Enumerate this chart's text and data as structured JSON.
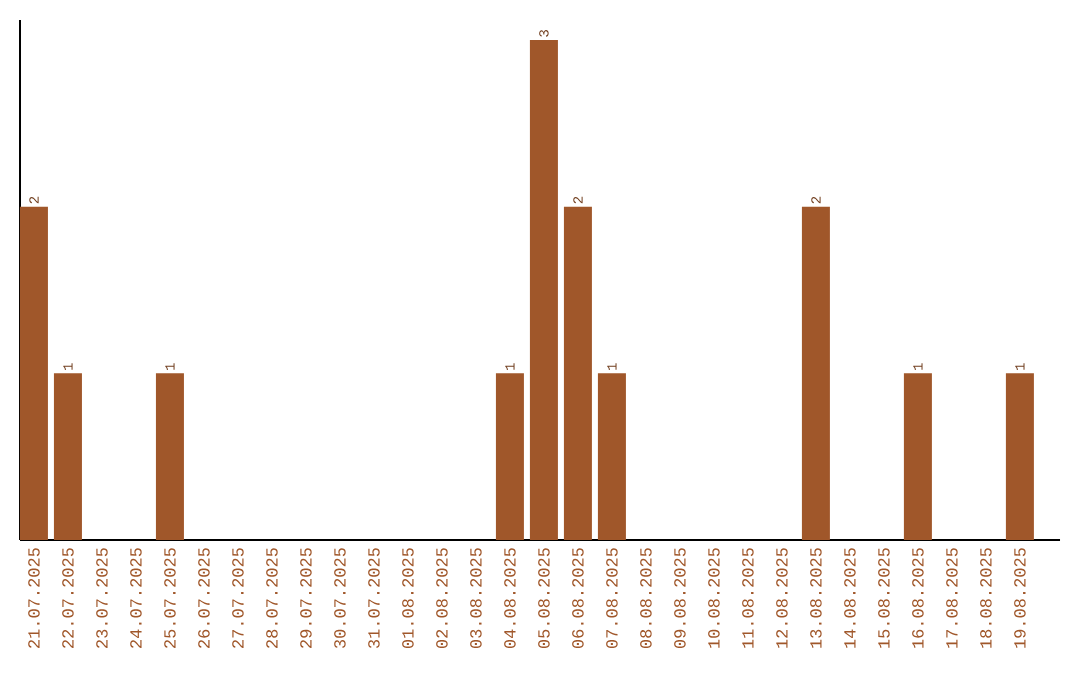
{
  "chart_data": {
    "type": "bar",
    "color": "#a0572a",
    "categories": [
      "21.07.2025",
      "22.07.2025",
      "23.07.2025",
      "24.07.2025",
      "25.07.2025",
      "26.07.2025",
      "27.07.2025",
      "28.07.2025",
      "29.07.2025",
      "30.07.2025",
      "31.07.2025",
      "01.08.2025",
      "02.08.2025",
      "03.08.2025",
      "04.08.2025",
      "05.08.2025",
      "06.08.2025",
      "07.08.2025",
      "08.08.2025",
      "09.08.2025",
      "10.08.2025",
      "11.08.2025",
      "12.08.2025",
      "13.08.2025",
      "14.08.2025",
      "15.08.2025",
      "16.08.2025",
      "17.08.2025",
      "18.08.2025",
      "19.08.2025"
    ],
    "values": [
      2,
      1,
      0,
      0,
      1,
      0,
      0,
      0,
      0,
      0,
      0,
      0,
      0,
      0,
      1,
      3,
      2,
      1,
      0,
      0,
      0,
      0,
      0,
      2,
      0,
      0,
      1,
      0,
      0,
      1
    ],
    "value_labels": [
      "2",
      "1",
      null,
      null,
      "1",
      null,
      null,
      null,
      null,
      null,
      null,
      null,
      null,
      null,
      "1",
      "3",
      "2",
      "1",
      null,
      null,
      null,
      null,
      null,
      "2",
      null,
      null,
      "1",
      null,
      null,
      "1"
    ]
  }
}
